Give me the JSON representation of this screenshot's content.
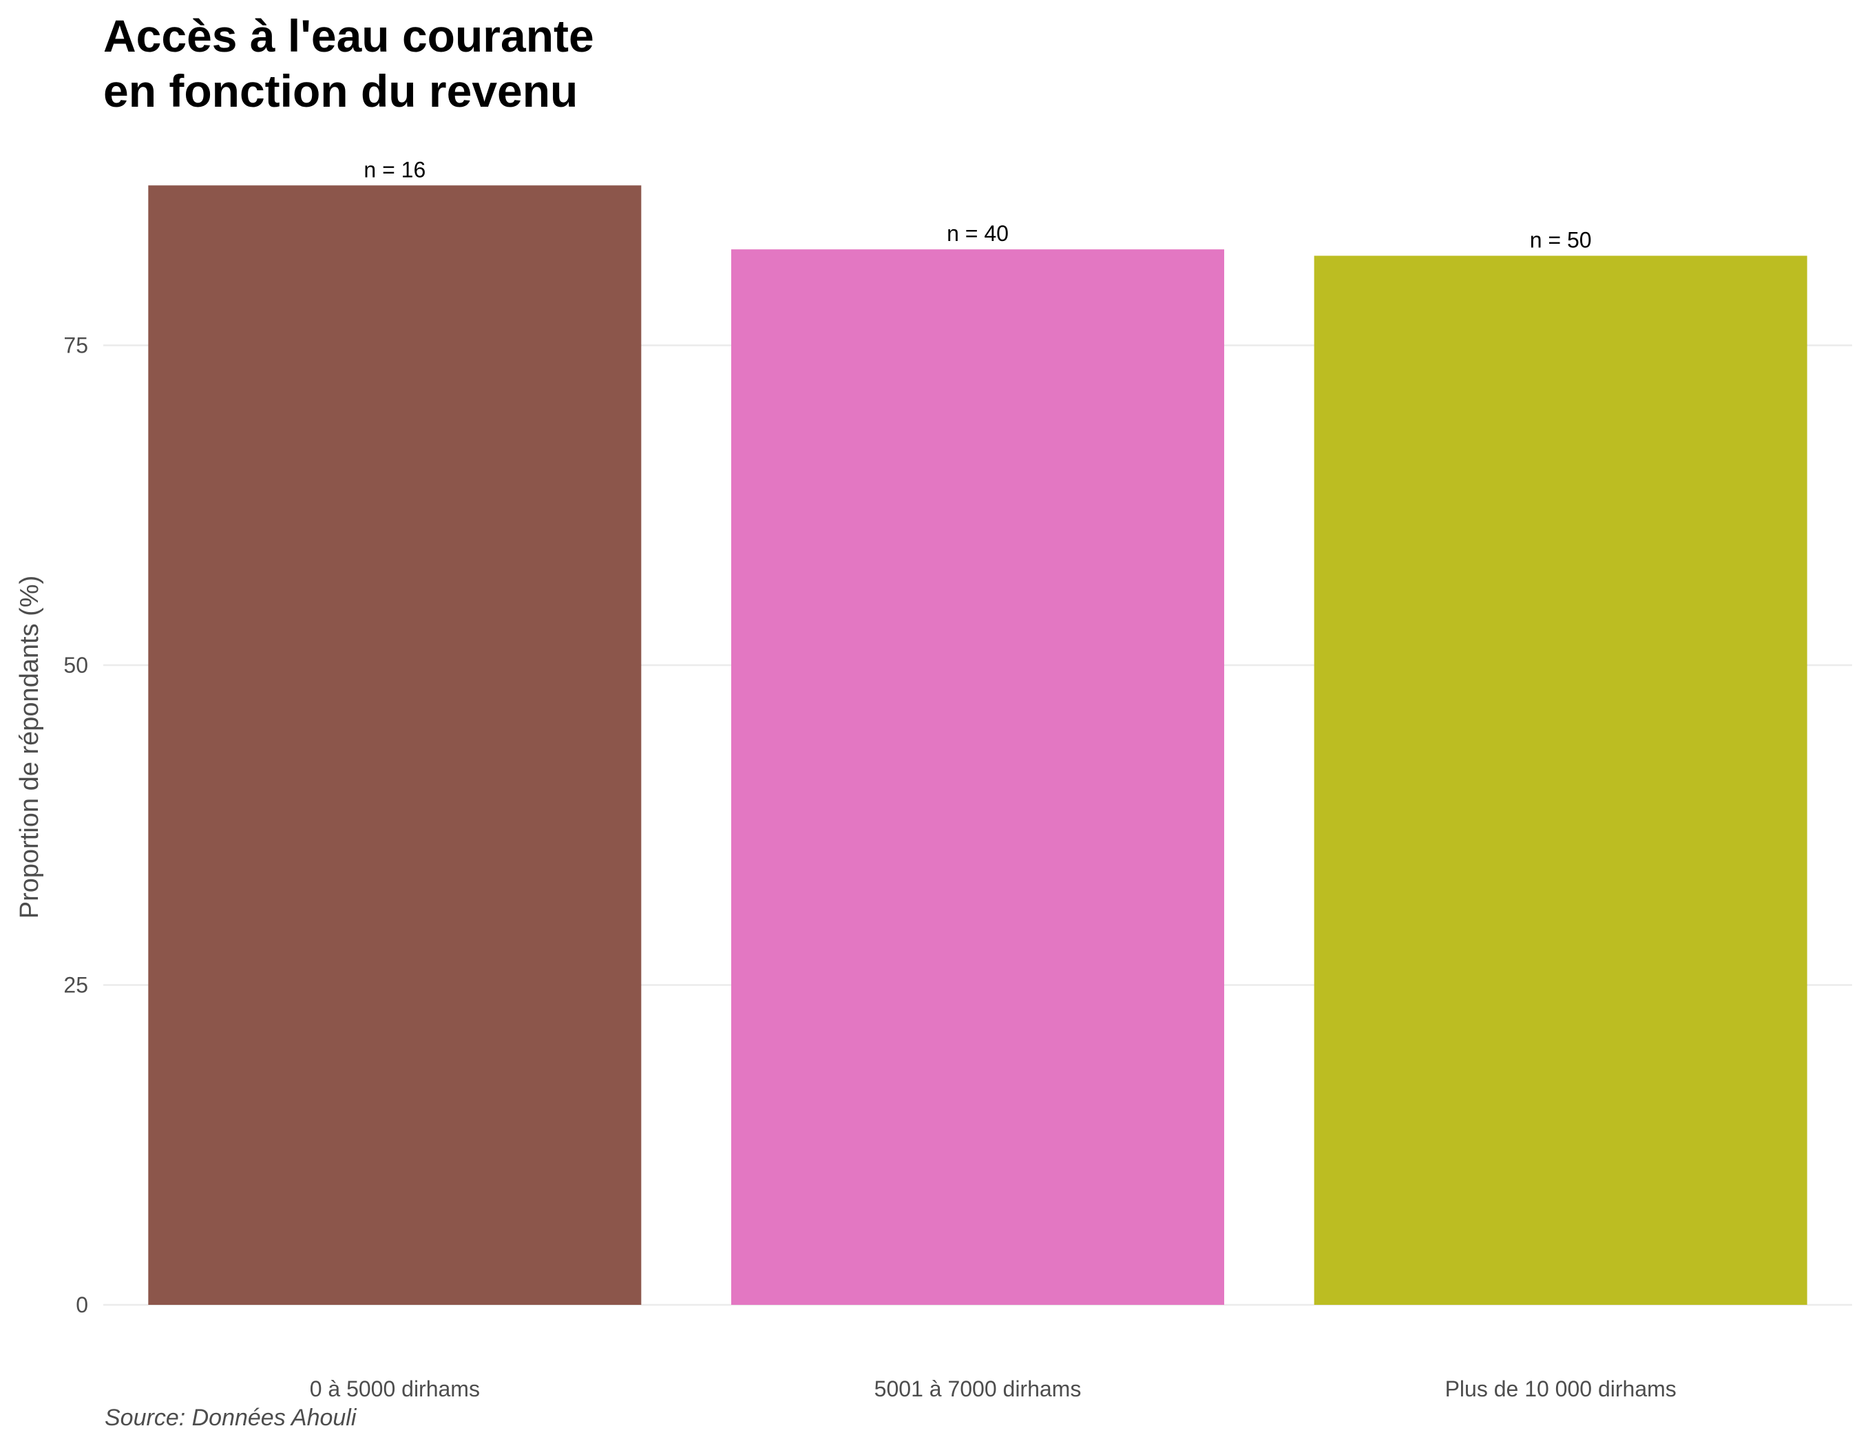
{
  "chart_data": {
    "type": "bar",
    "title_lines": [
      "Accès à l'eau courante",
      "en fonction du revenu"
    ],
    "xlabel": "",
    "ylabel": "Proportion de répondants (%)",
    "caption": "Source: Données Ahouli",
    "categories": [
      "0 à 5000 dirhams",
      "5001 à 7000 dirhams",
      "Plus de 10 000 dirhams"
    ],
    "values": [
      87.5,
      82.5,
      82.0
    ],
    "bar_labels": [
      "n = 16",
      "n = 40",
      "n = 50"
    ],
    "colors": [
      "#8c564b",
      "#e377c2",
      "#bcbd22"
    ],
    "yticks": [
      0,
      25,
      50,
      75
    ],
    "ylim": [
      0,
      87.5
    ],
    "grid": "horizontal",
    "legend": "none"
  }
}
